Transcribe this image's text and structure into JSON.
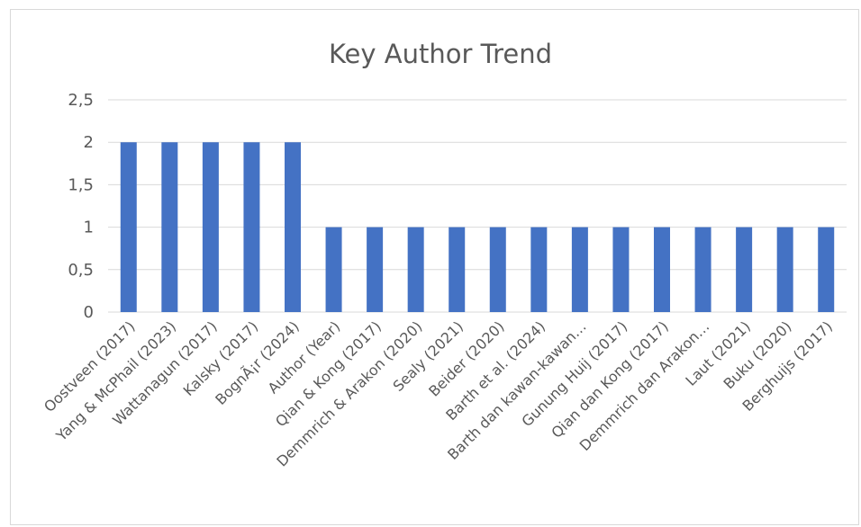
{
  "chart_data": {
    "type": "bar",
    "title": "Key Author Trend",
    "xlabel": "",
    "ylabel": "",
    "categories": [
      "Oostveen (2017)",
      "Yang & McPhail (2023)",
      "Wattanagun (2017)",
      "Kalsky (2017)",
      "BognÃ¡r (2024)",
      "Author (Year)",
      "Qian & Kong (2017)",
      "Demmrich & Arakon (2020)",
      "Sealy (2021)",
      "Beider (2020)",
      "Barth et al. (2024)",
      "Barth dan kawan-kawan…",
      "Gunung Huij (2017)",
      "Qian dan Kong (2017)",
      "Demmrich dan Arakon…",
      "Laut (2021)",
      "Buku (2020)",
      "Berghuijs (2017)"
    ],
    "values": [
      2,
      2,
      2,
      2,
      2,
      1,
      1,
      1,
      1,
      1,
      1,
      1,
      1,
      1,
      1,
      1,
      1,
      1
    ],
    "ylim": [
      0,
      2.5
    ],
    "yticks": [
      "0",
      "0,5",
      "1",
      "1,5",
      "2",
      "2,5"
    ],
    "grid": true,
    "legend": "none",
    "bar_color": "#4472c4"
  }
}
